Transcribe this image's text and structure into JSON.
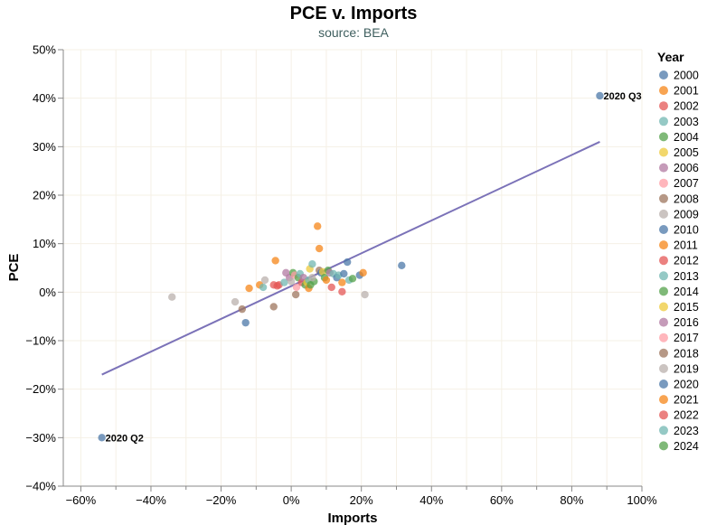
{
  "chart_data": {
    "type": "scatter",
    "title": "PCE v. Imports",
    "subtitle": "source: BEA",
    "xlabel": "Imports",
    "ylabel": "PCE",
    "xlim": [
      -65,
      100
    ],
    "ylim": [
      -40,
      50
    ],
    "x_ticks": [
      -60,
      -40,
      -20,
      0,
      20,
      40,
      60,
      80,
      100
    ],
    "y_ticks": [
      -40,
      -30,
      -20,
      -10,
      0,
      10,
      20,
      30,
      40,
      50
    ],
    "tick_format": "percent",
    "grid": true,
    "legend": {
      "title": "Year",
      "placement": "right",
      "entries": [
        {
          "label": "2000",
          "color": "#4c78a8"
        },
        {
          "label": "2001",
          "color": "#f58518"
        },
        {
          "label": "2002",
          "color": "#e45756"
        },
        {
          "label": "2003",
          "color": "#72b7b2"
        },
        {
          "label": "2004",
          "color": "#54a24b"
        },
        {
          "label": "2005",
          "color": "#eeca3b"
        },
        {
          "label": "2006",
          "color": "#b279a2"
        },
        {
          "label": "2007",
          "color": "#ff9da6"
        },
        {
          "label": "2008",
          "color": "#9d755d"
        },
        {
          "label": "2009",
          "color": "#bab0ac"
        },
        {
          "label": "2010",
          "color": "#4c78a8"
        },
        {
          "label": "2011",
          "color": "#f58518"
        },
        {
          "label": "2012",
          "color": "#e45756"
        },
        {
          "label": "2013",
          "color": "#72b7b2"
        },
        {
          "label": "2014",
          "color": "#54a24b"
        },
        {
          "label": "2015",
          "color": "#eeca3b"
        },
        {
          "label": "2016",
          "color": "#b279a2"
        },
        {
          "label": "2017",
          "color": "#ff9da6"
        },
        {
          "label": "2018",
          "color": "#9d755d"
        },
        {
          "label": "2019",
          "color": "#bab0ac"
        },
        {
          "label": "2020",
          "color": "#4c78a8"
        },
        {
          "label": "2021",
          "color": "#f58518"
        },
        {
          "label": "2022",
          "color": "#e45756"
        },
        {
          "label": "2023",
          "color": "#72b7b2"
        },
        {
          "label": "2024",
          "color": "#54a24b"
        }
      ]
    },
    "trend_line": {
      "x": [
        -54,
        88
      ],
      "y": [
        -17,
        31
      ],
      "color": "#7b72b8"
    },
    "annotations": [
      {
        "text": "2020 Q3",
        "x": 88,
        "y": 40.5
      },
      {
        "text": "2020 Q2",
        "x": -54,
        "y": -30
      }
    ],
    "points": [
      {
        "year": "2020",
        "x": 88,
        "y": 40.5
      },
      {
        "year": "2020",
        "x": -54,
        "y": -30
      },
      {
        "year": "2009",
        "x": -34,
        "y": -1
      },
      {
        "year": "2009",
        "x": -16,
        "y": -2
      },
      {
        "year": "2008",
        "x": -14,
        "y": -3.5
      },
      {
        "year": "2010",
        "x": -13,
        "y": -6.3
      },
      {
        "year": "2001",
        "x": -12,
        "y": 0.8
      },
      {
        "year": "2011",
        "x": -9,
        "y": 1.5
      },
      {
        "year": "2003",
        "x": -8,
        "y": 1
      },
      {
        "year": "2009",
        "x": -7.5,
        "y": 2.5
      },
      {
        "year": "2018",
        "x": -5,
        "y": -3
      },
      {
        "year": "2012",
        "x": -5,
        "y": 1.5
      },
      {
        "year": "2001",
        "x": -4.5,
        "y": 6.5
      },
      {
        "year": "2002",
        "x": -4,
        "y": 1.3
      },
      {
        "year": "2022",
        "x": -3.5,
        "y": 1.5
      },
      {
        "year": "2013",
        "x": -2,
        "y": 2
      },
      {
        "year": "2016",
        "x": -1.5,
        "y": 4
      },
      {
        "year": "2006",
        "x": -0.5,
        "y": 3
      },
      {
        "year": "2019",
        "x": 0,
        "y": 2.2
      },
      {
        "year": "2004",
        "x": 0.5,
        "y": 4
      },
      {
        "year": "2007",
        "x": 1,
        "y": 3.5
      },
      {
        "year": "2008",
        "x": 1.3,
        "y": -0.5
      },
      {
        "year": "2017",
        "x": 1.5,
        "y": 1
      },
      {
        "year": "2014",
        "x": 2,
        "y": 3
      },
      {
        "year": "2003",
        "x": 2.5,
        "y": 3.8
      },
      {
        "year": "2012",
        "x": 3,
        "y": 2
      },
      {
        "year": "2016",
        "x": 3.5,
        "y": 3
      },
      {
        "year": "2004",
        "x": 4,
        "y": 1.5
      },
      {
        "year": "2005",
        "x": 4.5,
        "y": 2
      },
      {
        "year": "2013",
        "x": 5,
        "y": 2.5
      },
      {
        "year": "2011",
        "x": 5,
        "y": 0.8
      },
      {
        "year": "2015",
        "x": 5.3,
        "y": 4.8
      },
      {
        "year": "2014",
        "x": 5.5,
        "y": 1.5
      },
      {
        "year": "2023",
        "x": 6,
        "y": 5.8
      },
      {
        "year": "2024",
        "x": 6.5,
        "y": 2.2
      },
      {
        "year": "2019",
        "x": 6,
        "y": 3
      },
      {
        "year": "2001",
        "x": 7.5,
        "y": 13.6
      },
      {
        "year": "2011",
        "x": 8,
        "y": 9
      },
      {
        "year": "2018",
        "x": 8,
        "y": 4.5
      },
      {
        "year": "2010",
        "x": 8.5,
        "y": 4
      },
      {
        "year": "2005",
        "x": 9,
        "y": 4.2
      },
      {
        "year": "2014",
        "x": 9.5,
        "y": 3
      },
      {
        "year": "2021",
        "x": 10,
        "y": 2.5
      },
      {
        "year": "2024",
        "x": 10.5,
        "y": 4.5
      },
      {
        "year": "2006",
        "x": 11,
        "y": 4
      },
      {
        "year": "2002",
        "x": 11.5,
        "y": 1
      },
      {
        "year": "2013",
        "x": 12,
        "y": 3.8
      },
      {
        "year": "2020",
        "x": 13,
        "y": 3
      },
      {
        "year": "2003",
        "x": 13.5,
        "y": 3.5
      },
      {
        "year": "2022",
        "x": 14.5,
        "y": 0.1
      },
      {
        "year": "2001",
        "x": 14.5,
        "y": 2
      },
      {
        "year": "2010",
        "x": 15,
        "y": 3.8
      },
      {
        "year": "2010",
        "x": 16,
        "y": 6.2
      },
      {
        "year": "2023",
        "x": 16.5,
        "y": 2.5
      },
      {
        "year": "2024",
        "x": 17.5,
        "y": 2.8
      },
      {
        "year": "2020",
        "x": 19.5,
        "y": 3.5
      },
      {
        "year": "2001",
        "x": 20.5,
        "y": 4
      },
      {
        "year": "2019",
        "x": 21,
        "y": -0.5
      },
      {
        "year": "2010",
        "x": 31.5,
        "y": 5.5
      }
    ]
  }
}
